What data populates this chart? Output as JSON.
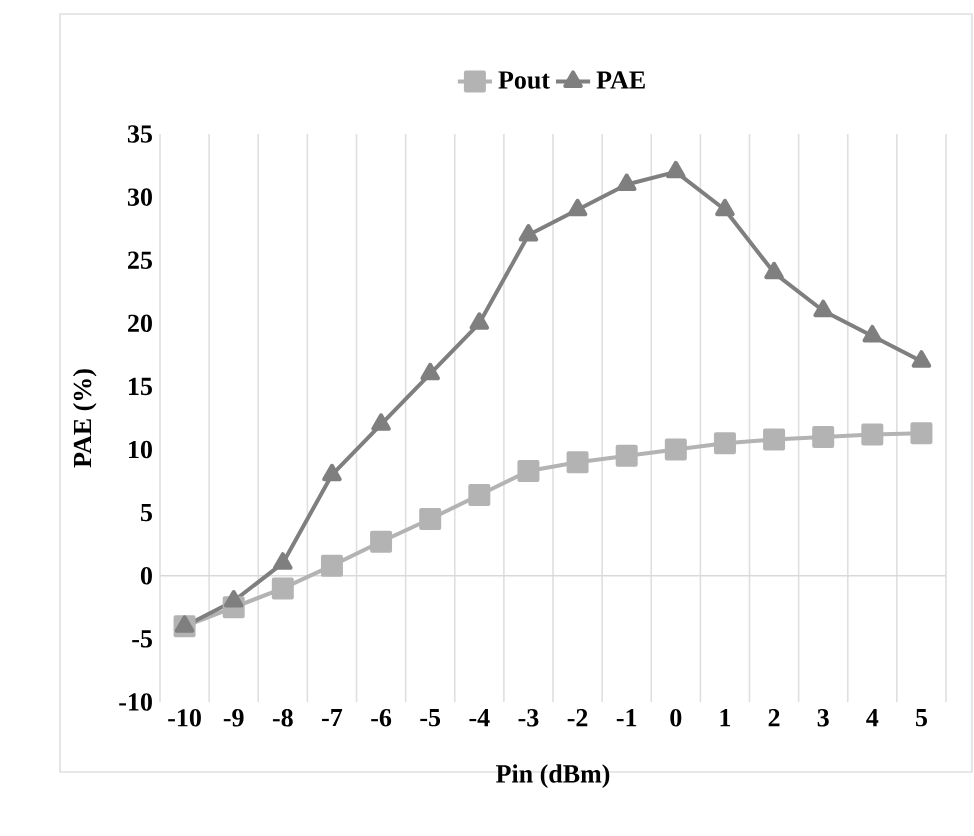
{
  "chart_data": {
    "type": "line",
    "xlabel": "Pin (dBm)",
    "ylabel": "PAE (%)",
    "categories": [
      "-10",
      "-9",
      "-8",
      "-7",
      "-6",
      "-5",
      "-4",
      "-3",
      "-2",
      "-1",
      "0",
      "1",
      "2",
      "3",
      "4",
      "5"
    ],
    "series": [
      {
        "name": "Pout",
        "color": "#b3b3b3",
        "marker": "square",
        "values": [
          -4,
          -2.5,
          -1,
          0.8,
          2.7,
          4.5,
          6.4,
          8.3,
          9,
          9.5,
          10,
          10.5,
          10.8,
          11,
          11.2,
          11.3
        ]
      },
      {
        "name": "PAE",
        "color": "#7f7f7f",
        "marker": "triangle",
        "values": [
          -4,
          -2,
          1,
          8,
          12,
          16,
          20,
          27,
          29,
          31,
          32,
          29,
          24,
          21,
          19,
          17
        ]
      }
    ],
    "ylim": [
      -10,
      35
    ],
    "yticks": [
      -10,
      -5,
      0,
      5,
      10,
      15,
      20,
      25,
      30,
      35
    ],
    "grid": "x",
    "legend": "top",
    "line_style": "solid"
  }
}
